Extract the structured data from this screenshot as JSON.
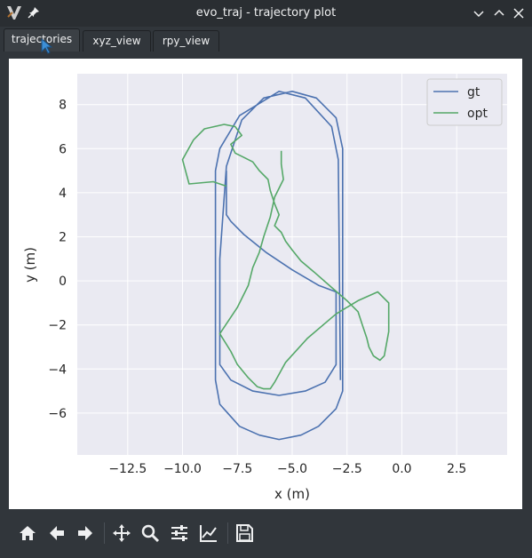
{
  "window": {
    "title": "evo_traj - trajectory plot"
  },
  "tabs": [
    {
      "label": "trajectories",
      "active": true
    },
    {
      "label": "xyz_view",
      "active": false
    },
    {
      "label": "rpy_view",
      "active": false
    }
  ],
  "toolbar": {
    "icons": [
      "home-icon",
      "back-arrow-icon",
      "forward-arrow-icon",
      "pan-icon",
      "zoom-icon",
      "configure-subplots-icon",
      "edit-axis-icon",
      "save-icon"
    ]
  },
  "colors": {
    "gt": "#4c72b0",
    "opt": "#55a868",
    "plot_bg": "#eaeaf2",
    "grid": "#ffffff"
  },
  "chart_data": {
    "type": "line",
    "title": "",
    "xlabel": "x (m)",
    "ylabel": "y (m)",
    "xlim": [
      -14.8,
      4.8
    ],
    "ylim": [
      -7.9,
      9.4
    ],
    "xticks": [
      -12.5,
      -10.0,
      -7.5,
      -5.0,
      -2.5,
      0.0,
      2.5
    ],
    "xtick_labels": [
      "−12.5",
      "−10.0",
      "−7.5",
      "−5.0",
      "−2.5",
      "0.0",
      "2.5"
    ],
    "yticks": [
      -6,
      -4,
      -2,
      0,
      2,
      4,
      6,
      8
    ],
    "ytick_labels": [
      "−6",
      "−4",
      "−2",
      "0",
      "2",
      "4",
      "6",
      "8"
    ],
    "grid": true,
    "legend_position": "top-right",
    "series": [
      {
        "name": "gt",
        "x": [
          -8.0,
          -8.0,
          -7.8,
          -7.2,
          -6.2,
          -5.0,
          -3.8,
          -3.0,
          -3.0,
          -3.0,
          -3.5,
          -4.4,
          -5.6,
          -6.8,
          -7.8,
          -8.3,
          -8.3,
          -8.3,
          -8.0,
          -7.3,
          -6.3,
          -5.0,
          -3.9,
          -3.0,
          -2.7,
          -2.7,
          -2.7,
          -3.0,
          -3.8,
          -4.6,
          -5.6,
          -6.5,
          -7.4,
          -8.3,
          -8.5,
          -8.5,
          -8.3,
          -7.4,
          -5.6,
          -4.4,
          -3.2,
          -2.9,
          -2.8
        ],
        "y": [
          5.0,
          3.0,
          2.7,
          2.1,
          1.3,
          0.5,
          -0.2,
          -0.5,
          -1.8,
          -3.8,
          -4.6,
          -5.0,
          -5.2,
          -5.0,
          -4.5,
          -3.8,
          -2.2,
          1.0,
          5.2,
          7.3,
          8.3,
          8.6,
          8.3,
          7.4,
          6.0,
          0.0,
          -5.0,
          -5.8,
          -6.6,
          -7.0,
          -7.2,
          -7.0,
          -6.6,
          -5.6,
          -4.5,
          5.0,
          6.0,
          7.5,
          8.6,
          8.3,
          7.0,
          5.5,
          -4.5
        ]
      },
      {
        "name": "opt",
        "x": [
          -8.0,
          -8.6,
          -9.7,
          -10.0,
          -9.5,
          -9.0,
          -8.1,
          -7.6,
          -7.3,
          -7.8,
          -7.6,
          -7.2,
          -6.8,
          -6.5,
          -6.1,
          -6.0,
          -5.8,
          -5.6,
          -5.8,
          -5.5,
          -5.3,
          -5.0,
          -4.6,
          -4.0,
          -3.2,
          -2.5,
          -2.0,
          -1.8,
          -1.6,
          -1.5,
          -1.3,
          -1.0,
          -0.8,
          -0.6,
          -0.6,
          -1.1,
          -2.0,
          -3.0,
          -4.3,
          -5.3,
          -5.8,
          -6.0,
          -6.3,
          -6.6,
          -7.0,
          -7.5,
          -7.8,
          -8.3,
          -7.5,
          -7.0,
          -6.8,
          -6.5,
          -6.3,
          -6.0,
          -5.8,
          -5.4,
          -5.5,
          -5.5
        ],
        "y": [
          4.3,
          4.5,
          4.4,
          5.5,
          6.4,
          6.9,
          7.1,
          7.0,
          6.6,
          6.2,
          5.8,
          5.6,
          5.4,
          5.0,
          4.6,
          4.1,
          3.5,
          3.0,
          2.5,
          2.2,
          1.8,
          1.4,
          0.9,
          0.4,
          -0.3,
          -0.9,
          -1.4,
          -2.0,
          -2.6,
          -3.0,
          -3.4,
          -3.6,
          -3.4,
          -2.3,
          -1.0,
          -0.5,
          -0.9,
          -1.5,
          -2.6,
          -3.7,
          -4.6,
          -4.9,
          -4.9,
          -4.8,
          -4.4,
          -3.8,
          -3.2,
          -2.4,
          -1.2,
          -0.2,
          0.6,
          1.3,
          2.0,
          2.9,
          3.8,
          4.6,
          5.3,
          5.9
        ]
      }
    ]
  }
}
